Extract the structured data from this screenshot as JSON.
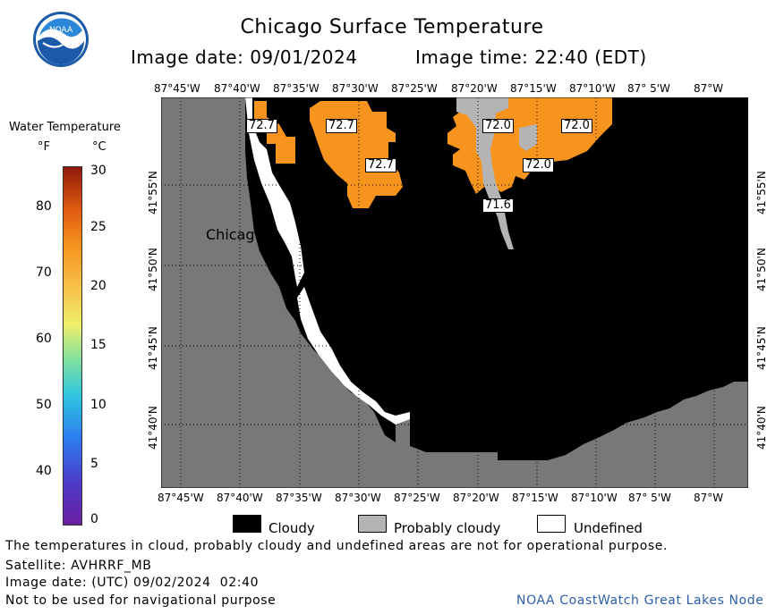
{
  "header": {
    "title": "Chicago Surface Temperature",
    "image_date_label": "Image date: 09/01/2024",
    "image_time_label": "Image time: 22:40 (EDT)"
  },
  "logo_text": "NOAA",
  "colorbar": {
    "title": "Water Temperature",
    "f_unit": "°F",
    "c_unit": "°C",
    "f_ticks": [
      "80",
      "70",
      "60",
      "50",
      "40"
    ],
    "c_ticks": [
      "30",
      "25",
      "20",
      "15",
      "10",
      "5",
      "0"
    ]
  },
  "map": {
    "lon_labels": [
      "87°45'W",
      "87°40'W",
      "87°35'W",
      "87°30'W",
      "87°25'W",
      "87°20'W",
      "87°15'W",
      "87°10'W",
      "87° 5'W",
      "87°W"
    ],
    "lat_labels": [
      "41°55'N",
      "41°50'N",
      "41°45'N",
      "41°40'N"
    ],
    "city_label": "Chicago",
    "temp_labels": [
      "72.7",
      "72.7",
      "72.7",
      "72.0",
      "72.0",
      "72.0",
      "71.6"
    ],
    "colors": {
      "land": "#787878",
      "cloud": "#000000",
      "probably_cloudy": "#b4b4b4",
      "water_72": "#f6941e",
      "grid": "#000000"
    }
  },
  "legend": {
    "cloudy": "Cloudy",
    "probably_cloudy": "Probably cloudy",
    "undefined": "Undefined"
  },
  "footer": {
    "line1": "The temperatures in cloud, probably cloudy and undefined areas are not for operational purpose.",
    "line2": "Satellite: AVHRRF_MB",
    "line3": "Image date: (UTC) 09/02/2024  02:40",
    "line4": "Not to be used for navigational purpose",
    "credit": "NOAA CoastWatch Great Lakes Node"
  }
}
